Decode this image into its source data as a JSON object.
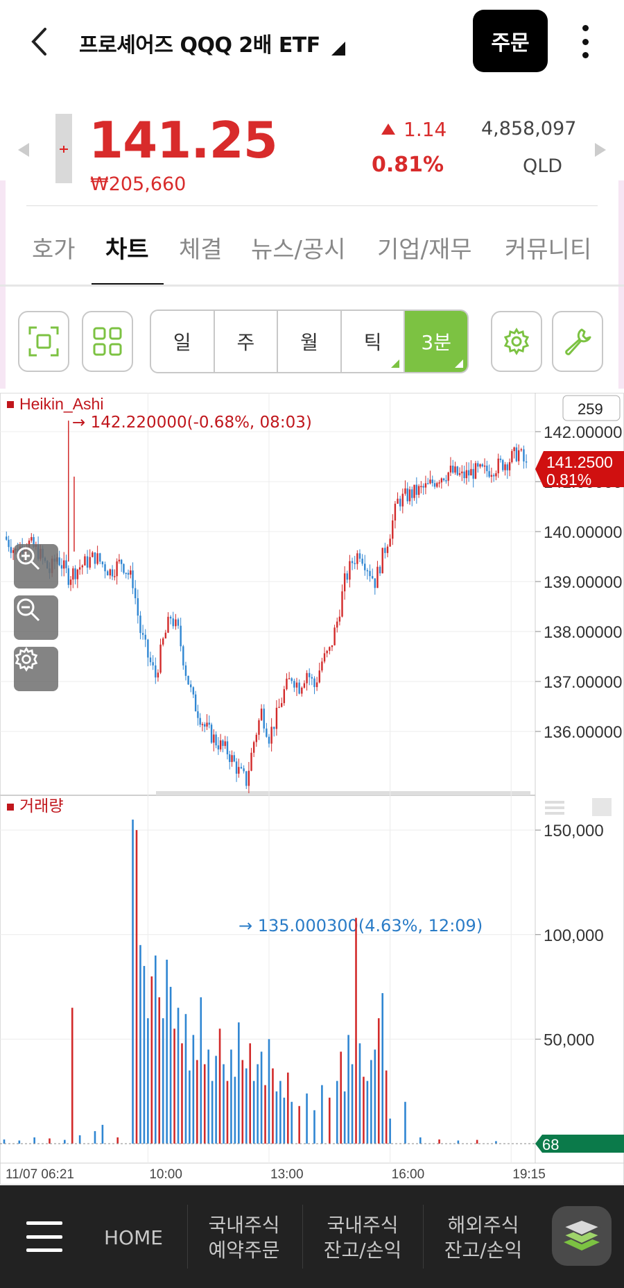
{
  "header": {
    "title": "프로셰어즈 QQQ 2배 ETF",
    "order_label": "주문",
    "icons": [
      "chevron-left-icon",
      "caret-down-icon",
      "more-vertical-icon"
    ]
  },
  "quote": {
    "price": "141.25",
    "price_krw": "₩205,660",
    "change": "1.14",
    "change_pct": "0.81%",
    "volume": "4,858,097",
    "ticker": "QLD",
    "up_color": "#d82b2b"
  },
  "tabs": [
    {
      "label": "호가"
    },
    {
      "label": "차트",
      "active": true
    },
    {
      "label": "체결"
    },
    {
      "label": "뉴스/공시"
    },
    {
      "label": "기업/재무"
    },
    {
      "label": "커뮤니티"
    }
  ],
  "toolbar": {
    "periods": [
      {
        "label": "일"
      },
      {
        "label": "주"
      },
      {
        "label": "월"
      },
      {
        "label": "틱",
        "has_menu": true
      },
      {
        "label": "3분",
        "active": true,
        "has_menu": true
      }
    ],
    "accent": "#7cc242"
  },
  "chart_data": {
    "type": "candlestick",
    "indicator_label": "Heikin_Ashi",
    "count_badge": "259",
    "high_annotation": "142.220000(-0.68%, 08:03)",
    "low_annotation": "135.000300(4.63%, 12:09)",
    "current_price_label": "141.2500",
    "current_pct_label": "0.81%",
    "price_ticks": [
      {
        "value": 142,
        "label": "142.00000"
      },
      {
        "value": 141,
        "label": "141.00000"
      },
      {
        "value": 140,
        "label": "140.00000"
      },
      {
        "value": 139,
        "label": "139.00000"
      },
      {
        "value": 138,
        "label": "138.00000"
      },
      {
        "value": 137,
        "label": "137.00000"
      },
      {
        "value": 136,
        "label": "136.00000"
      }
    ],
    "ylim": [
      135,
      142.5
    ],
    "path": [
      [
        0,
        139.9
      ],
      [
        3,
        139.6
      ],
      [
        6,
        139.8
      ],
      [
        9,
        139.6
      ],
      [
        12,
        139.2
      ],
      [
        14,
        139.5
      ],
      [
        17,
        139.1
      ],
      [
        20,
        139.3
      ],
      [
        24,
        139.5
      ],
      [
        28,
        139.2
      ],
      [
        31,
        139.4
      ],
      [
        34,
        139.0
      ],
      [
        36,
        138.0
      ],
      [
        38,
        137.5
      ],
      [
        40,
        137.1
      ],
      [
        42,
        137.8
      ],
      [
        44,
        138.3
      ],
      [
        46,
        138.0
      ],
      [
        48,
        137.2
      ],
      [
        50,
        136.6
      ],
      [
        53,
        136.1
      ],
      [
        56,
        135.8
      ],
      [
        59,
        135.6
      ],
      [
        62,
        135.2
      ],
      [
        64,
        135.0
      ],
      [
        66,
        135.8
      ],
      [
        68,
        136.4
      ],
      [
        70,
        135.9
      ],
      [
        72,
        136.3
      ],
      [
        74,
        136.8
      ],
      [
        76,
        137.1
      ],
      [
        78,
        136.9
      ],
      [
        80,
        137.2
      ],
      [
        82,
        136.9
      ],
      [
        84,
        137.4
      ],
      [
        86,
        137.6
      ],
      [
        88,
        138.2
      ],
      [
        90,
        139.0
      ],
      [
        92,
        139.4
      ],
      [
        94,
        139.6
      ],
      [
        96,
        139.3
      ],
      [
        98,
        139.0
      ],
      [
        100,
        139.5
      ],
      [
        102,
        140.0
      ],
      [
        104,
        140.6
      ],
      [
        106,
        140.7
      ],
      [
        109,
        140.8
      ],
      [
        112,
        140.9
      ],
      [
        115,
        141.1
      ],
      [
        118,
        141.2
      ],
      [
        121,
        141.1
      ],
      [
        124,
        141.2
      ],
      [
        127,
        141.2
      ],
      [
        130,
        141.3
      ],
      [
        133,
        141.4
      ],
      [
        136,
        141.6
      ],
      [
        138,
        141.3
      ]
    ],
    "x_max": 140,
    "volume_label": "거래량",
    "volume_ticks": [
      {
        "value": 150000,
        "label": "150,000"
      },
      {
        "value": 100000,
        "label": "100,000"
      },
      {
        "value": 50000,
        "label": "50,000"
      }
    ],
    "volume_ylim": [
      0,
      160000
    ],
    "volume_current": "68",
    "volume_bars": [
      [
        0,
        2000
      ],
      [
        4,
        1500
      ],
      [
        8,
        3000
      ],
      [
        12,
        2500
      ],
      [
        16,
        1800
      ],
      [
        18,
        65000
      ],
      [
        20,
        4000
      ],
      [
        24,
        6000
      ],
      [
        26,
        9000
      ],
      [
        30,
        3000
      ],
      [
        34,
        155000
      ],
      [
        35,
        150000
      ],
      [
        36,
        95000
      ],
      [
        37,
        85000
      ],
      [
        38,
        60000
      ],
      [
        39,
        80000
      ],
      [
        40,
        90000
      ],
      [
        41,
        70000
      ],
      [
        42,
        60000
      ],
      [
        43,
        88000
      ],
      [
        44,
        75000
      ],
      [
        45,
        55000
      ],
      [
        46,
        65000
      ],
      [
        47,
        48000
      ],
      [
        48,
        62000
      ],
      [
        49,
        35000
      ],
      [
        50,
        52000
      ],
      [
        51,
        40000
      ],
      [
        52,
        70000
      ],
      [
        53,
        38000
      ],
      [
        54,
        45000
      ],
      [
        55,
        30000
      ],
      [
        56,
        42000
      ],
      [
        57,
        55000
      ],
      [
        58,
        38000
      ],
      [
        59,
        30000
      ],
      [
        60,
        45000
      ],
      [
        61,
        32000
      ],
      [
        62,
        58000
      ],
      [
        63,
        40000
      ],
      [
        64,
        36000
      ],
      [
        65,
        48000
      ],
      [
        66,
        30000
      ],
      [
        67,
        38000
      ],
      [
        68,
        44000
      ],
      [
        69,
        28000
      ],
      [
        70,
        50000
      ],
      [
        71,
        36000
      ],
      [
        72,
        25000
      ],
      [
        73,
        30000
      ],
      [
        74,
        22000
      ],
      [
        75,
        34000
      ],
      [
        76,
        20000
      ],
      [
        78,
        18000
      ],
      [
        80,
        24000
      ],
      [
        82,
        16000
      ],
      [
        84,
        28000
      ],
      [
        86,
        22000
      ],
      [
        88,
        30000
      ],
      [
        89,
        44000
      ],
      [
        90,
        25000
      ],
      [
        91,
        52000
      ],
      [
        92,
        38000
      ],
      [
        93,
        108000
      ],
      [
        94,
        48000
      ],
      [
        95,
        32000
      ],
      [
        96,
        30000
      ],
      [
        97,
        40000
      ],
      [
        98,
        45000
      ],
      [
        99,
        60000
      ],
      [
        100,
        72000
      ],
      [
        101,
        35000
      ],
      [
        102,
        12000
      ],
      [
        106,
        20000
      ],
      [
        110,
        3000
      ],
      [
        115,
        2000
      ],
      [
        120,
        1500
      ],
      [
        125,
        1800
      ],
      [
        130,
        1200
      ]
    ],
    "x_ticks": [
      {
        "pos": 0,
        "label": "11/07 06:21"
      },
      {
        "pos": 38,
        "label": "10:00"
      },
      {
        "pos": 70,
        "label": "13:00"
      },
      {
        "pos": 102,
        "label": "16:00"
      },
      {
        "pos": 134,
        "label": "19:15"
      }
    ]
  },
  "bottom_nav": {
    "items": [
      {
        "label": "HOME"
      },
      {
        "label": "국내주식\n예약주문"
      },
      {
        "label": "국내주식\n잔고/손익"
      },
      {
        "label": "해외주식\n잔고/손익"
      }
    ]
  }
}
